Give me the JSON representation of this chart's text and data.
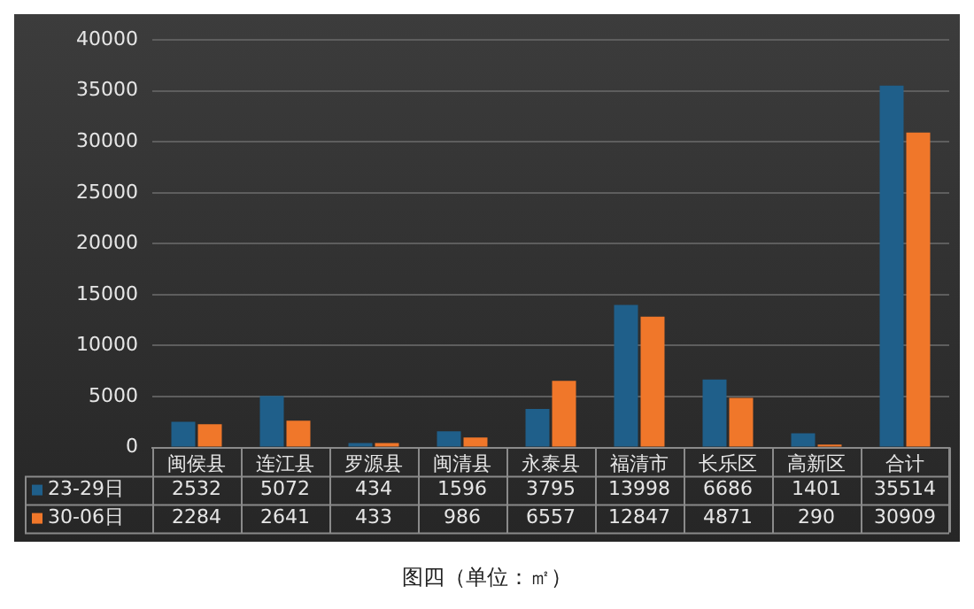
{
  "chart_data": {
    "type": "bar",
    "categories": [
      "闽侯县",
      "连江县",
      "罗源县",
      "闽清县",
      "永泰县",
      "福清市",
      "长乐区",
      "高新区",
      "合计"
    ],
    "series": [
      {
        "name": "23-29日",
        "color": "#1f5f8a",
        "values": [
          2532,
          5072,
          434,
          1596,
          3795,
          13998,
          6686,
          1401,
          35514
        ]
      },
      {
        "name": "30-06日",
        "color": "#f0772a",
        "values": [
          2284,
          2641,
          433,
          986,
          6557,
          12847,
          4871,
          290,
          30909
        ]
      }
    ],
    "ylim": [
      0,
      40000
    ],
    "yticks": [
      0,
      5000,
      10000,
      15000,
      20000,
      25000,
      30000,
      35000,
      40000
    ],
    "grid": "y",
    "legend": "bottom",
    "data_labels": true,
    "annotations": [
      "图四（单位：㎡）"
    ]
  }
}
